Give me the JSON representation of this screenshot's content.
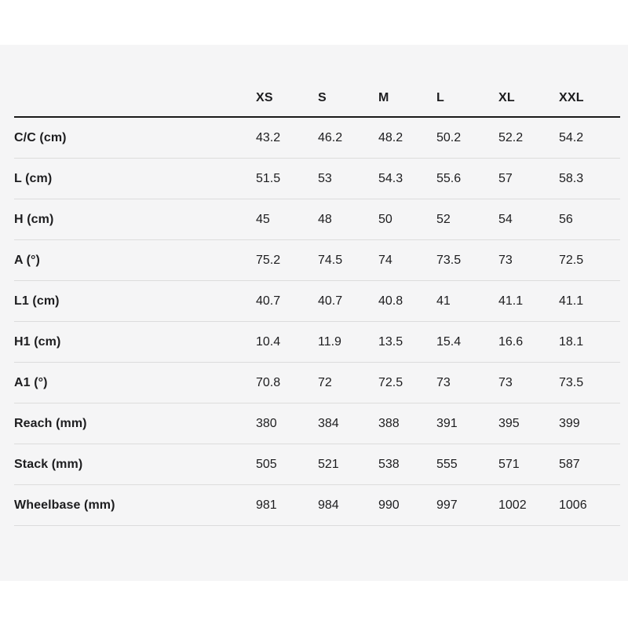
{
  "chart_data": {
    "type": "table",
    "columns": [
      "XS",
      "S",
      "M",
      "L",
      "XL",
      "XXL"
    ],
    "rows": [
      {
        "label": "C/C (cm)",
        "values": [
          "43.2",
          "46.2",
          "48.2",
          "50.2",
          "52.2",
          "54.2"
        ]
      },
      {
        "label": "L (cm)",
        "values": [
          "51.5",
          "53",
          "54.3",
          "55.6",
          "57",
          "58.3"
        ]
      },
      {
        "label": "H (cm)",
        "values": [
          "45",
          "48",
          "50",
          "52",
          "54",
          "56"
        ]
      },
      {
        "label": "A (°)",
        "values": [
          "75.2",
          "74.5",
          "74",
          "73.5",
          "73",
          "72.5"
        ]
      },
      {
        "label": "L1 (cm)",
        "values": [
          "40.7",
          "40.7",
          "40.8",
          "41",
          "41.1",
          "41.1"
        ]
      },
      {
        "label": "H1 (cm)",
        "values": [
          "10.4",
          "11.9",
          "13.5",
          "15.4",
          "16.6",
          "18.1"
        ]
      },
      {
        "label": "A1 (°)",
        "values": [
          "70.8",
          "72",
          "72.5",
          "73",
          "73",
          "73.5"
        ]
      },
      {
        "label": "Reach (mm)",
        "values": [
          "380",
          "384",
          "388",
          "391",
          "395",
          "399"
        ]
      },
      {
        "label": "Stack (mm)",
        "values": [
          "505",
          "521",
          "538",
          "555",
          "571",
          "587"
        ]
      },
      {
        "label": "Wheelbase (mm)",
        "values": [
          "981",
          "984",
          "990",
          "997",
          "1002",
          "1006"
        ]
      }
    ]
  },
  "colors": {
    "page_background": "#ffffff",
    "panel_background": "#f5f5f6",
    "text": "#1d1d1f",
    "header_rule": "#1a1a1a",
    "row_divider": "#dcdcdc"
  }
}
